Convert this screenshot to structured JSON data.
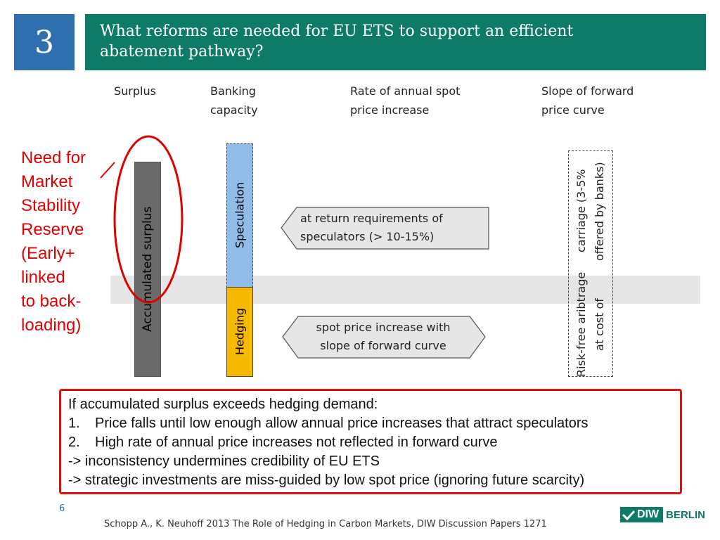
{
  "header": {
    "section_number": "3",
    "title_line1": "What reforms are needed for EU ETS to support an efficient",
    "title_line2": "abatement pathway?"
  },
  "columns": [
    {
      "line1": "Surplus",
      "line2": ""
    },
    {
      "line1": "Banking",
      "line2": "capacity"
    },
    {
      "line1": "Rate of annual spot",
      "line2": "price increase"
    },
    {
      "line1": "Slope of forward",
      "line2": "price curve"
    }
  ],
  "bars": {
    "surplus": "Accumulated surplus",
    "speculation": "Speculation",
    "hedging": "Hedging"
  },
  "callout": {
    "lines": [
      "Need for",
      "Market",
      "Stability",
      "Reserve",
      "(Early+",
      "linked",
      "to back-",
      "loading)"
    ]
  },
  "arrows": {
    "speculators": {
      "line1": "at return requirements of",
      "line2": "speculators (> 10-15%)"
    },
    "hedging": {
      "line1": "spot price increase with",
      "line2": "slope of forward curve"
    }
  },
  "riskfree": {
    "line1": "Risk-free aribtrage at cost of",
    "line2": "carriage (3-5% offered by banks)"
  },
  "note": {
    "intro": "If accumulated surplus exceeds hedging demand:",
    "items": [
      {
        "num": "1.",
        "text": "Price falls until low enough allow annual price increases that attract speculators"
      },
      {
        "num": "2.",
        "text": "High rate of annual price increases not reflected in forward curve"
      }
    ],
    "conclusion1": "-> inconsistency undermines credibility of EU ETS",
    "conclusion2": "-> strategic investments are miss-guided by low spot price (ignoring future scarcity)"
  },
  "footer": {
    "page_number": "6",
    "citation": "Schopp A., K. Neuhoff 2013 The Role of Hedging in Carbon Markets, DIW Discussion Papers 1271",
    "logo_diw": "DIW",
    "logo_berlin": "BERLIN"
  },
  "colors": {
    "header_green": "#0e7a68",
    "section_blue": "#2f6fb0",
    "highlight_red": "#e00000",
    "speculation_blue": "#8fbce8",
    "hedging_yellow": "#f7b800",
    "surplus_grey": "#6a6a6a"
  }
}
